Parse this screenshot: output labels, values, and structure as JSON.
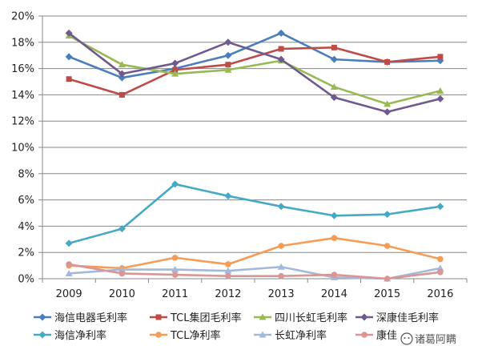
{
  "chart_data": {
    "type": "line",
    "categories": [
      "2009",
      "2010",
      "2011",
      "2012",
      "2013",
      "2014",
      "2015",
      "2016"
    ],
    "ylim": [
      0,
      20
    ],
    "ytick_values": [
      0,
      2,
      4,
      6,
      8,
      10,
      12,
      14,
      16,
      18,
      20
    ],
    "ytick_labels": [
      "0%",
      "2%",
      "4%",
      "6%",
      "8%",
      "10%",
      "12%",
      "14%",
      "16%",
      "18%",
      "20%"
    ],
    "grid": true,
    "legend_position": "bottom",
    "series": [
      {
        "name": "海信电器毛利率",
        "color": "#4a7ebb",
        "marker": "diamond",
        "values": [
          16.9,
          15.3,
          16.0,
          17.0,
          18.7,
          16.7,
          16.5,
          16.6
        ]
      },
      {
        "name": "TCL集团毛利率",
        "color": "#be4b48",
        "marker": "square",
        "values": [
          15.2,
          14.0,
          15.9,
          16.3,
          17.5,
          17.6,
          16.5,
          16.9
        ]
      },
      {
        "name": "四川长虹毛利率",
        "color": "#98b954",
        "marker": "triangle",
        "values": [
          18.5,
          16.3,
          15.6,
          15.9,
          16.6,
          14.6,
          13.3,
          14.3
        ]
      },
      {
        "name": "深康佳毛利率",
        "color": "#6f5a8f",
        "marker": "diamond",
        "values": [
          18.7,
          15.6,
          16.4,
          18.0,
          16.7,
          13.8,
          12.7,
          13.7
        ]
      },
      {
        "name": "海信净利率",
        "color": "#46aac5",
        "marker": "diamond",
        "values": [
          2.7,
          3.8,
          7.2,
          6.3,
          5.5,
          4.8,
          4.9,
          5.5
        ]
      },
      {
        "name": "TCL净利率",
        "color": "#f59d56",
        "marker": "circle",
        "values": [
          1.0,
          0.8,
          1.6,
          1.1,
          2.5,
          3.1,
          2.5,
          1.5
        ]
      },
      {
        "name": "长虹净利率",
        "color": "#a4b8dc",
        "marker": "triangle",
        "values": [
          0.4,
          0.7,
          0.7,
          0.6,
          0.9,
          0.1,
          0.0,
          0.8
        ]
      },
      {
        "name": "康佳",
        "color": "#d99694",
        "marker": "circle",
        "values": [
          1.1,
          0.4,
          0.3,
          0.2,
          0.2,
          0.3,
          0.0,
          0.5
        ]
      }
    ]
  },
  "watermark": {
    "text": "诸葛阿瞒"
  }
}
